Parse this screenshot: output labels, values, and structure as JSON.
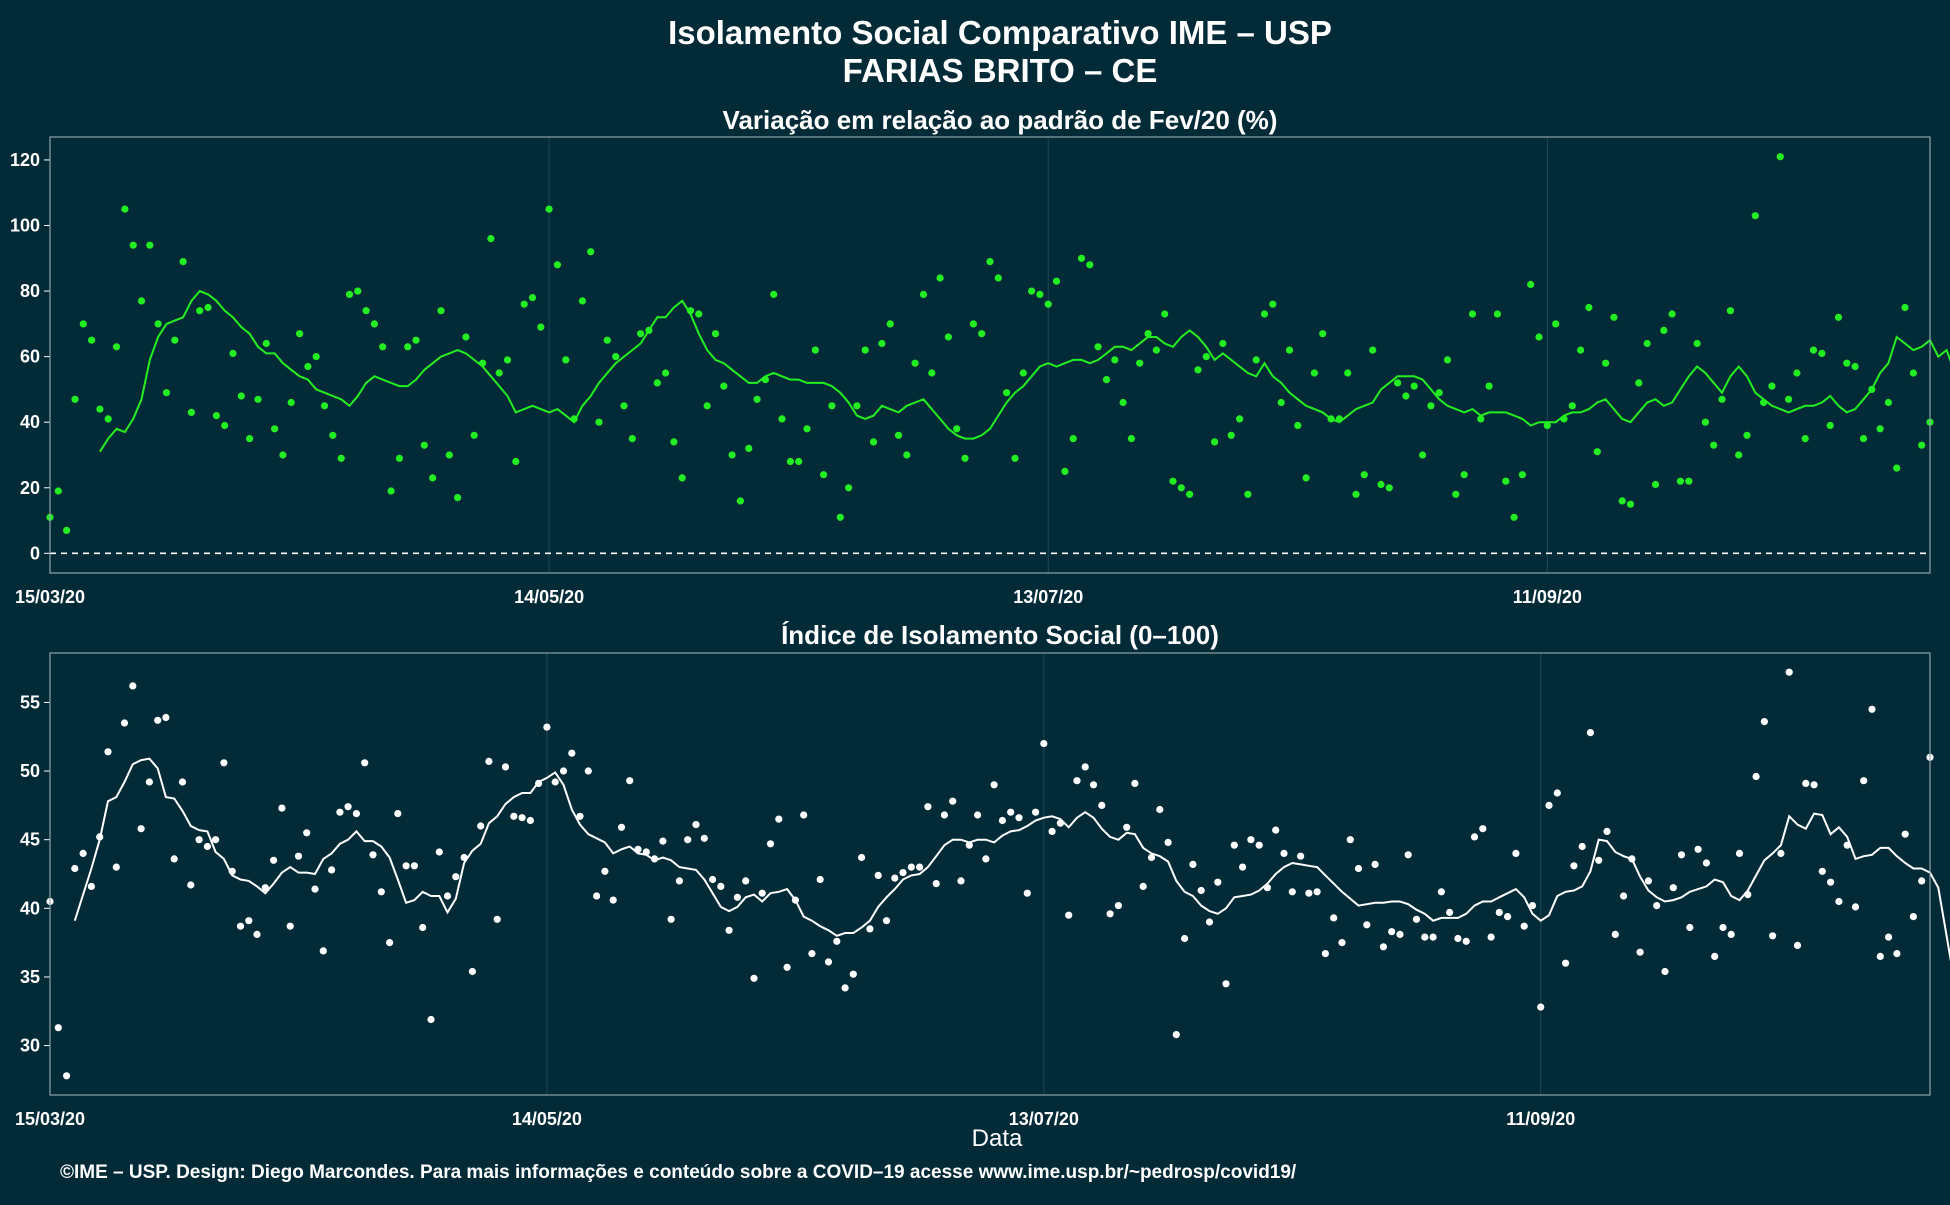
{
  "title_line1": "Isolamento Social Comparativo IME – USP",
  "title_line2": "FARIAS BRITO – CE",
  "xlabel": "Data",
  "footer": "©IME – USP. Design: Diego Marcondes. Para mais informações e conteúdo sobre a COVID–19 acesse www.ime.usp.br/~pedrosp/covid19/",
  "colors": {
    "background": "#022b37",
    "panel_border": "#8fa3ab",
    "grid": "#1e4957",
    "variation": "#22ee22",
    "index": "#ffffff"
  },
  "chart_data": [
    {
      "type": "scatter",
      "title": "Variação em relação ao padrão de Fev/20 (%)",
      "x_start": "2020-03-15",
      "x_ticks": [
        "15/03/20",
        "14/05/20",
        "13/07/20",
        "11/09/20"
      ],
      "yticks": [
        0,
        20,
        40,
        60,
        80,
        100,
        120
      ],
      "ylim": [
        -6,
        127
      ],
      "reference_line": 0,
      "series": [
        {
          "points": [
            11,
            19,
            7,
            47,
            70,
            65,
            44,
            41,
            63,
            105,
            94,
            77,
            94,
            70,
            49,
            65,
            89,
            43,
            74,
            75,
            42,
            39,
            61,
            48,
            35,
            47,
            64,
            38,
            30,
            46,
            67,
            57,
            60,
            45,
            36,
            29,
            79,
            80,
            74,
            70,
            63,
            19,
            29,
            63,
            65,
            33,
            23,
            74,
            30,
            17,
            66,
            36,
            58,
            96,
            55,
            59,
            28,
            76,
            78,
            69,
            105,
            88,
            59,
            41,
            77,
            92,
            40,
            65,
            60,
            45,
            35,
            67,
            68,
            52,
            55,
            34,
            23,
            74,
            73,
            45,
            67,
            51,
            30,
            16,
            32,
            47,
            53,
            79,
            41,
            28,
            28,
            38,
            62,
            24,
            45,
            11,
            20,
            45,
            62,
            34,
            64,
            70,
            36,
            30,
            58,
            79,
            55,
            84,
            66,
            38,
            29,
            70,
            67,
            89,
            84,
            49,
            29,
            55,
            80,
            79,
            76,
            83,
            25,
            35,
            90,
            88,
            63,
            53,
            59,
            46,
            35,
            58,
            67,
            62,
            73,
            22,
            20,
            18,
            56,
            60,
            34,
            64,
            36,
            41,
            18,
            59,
            73,
            76,
            46,
            62,
            39,
            23,
            55,
            67,
            41,
            41,
            55,
            18,
            24,
            62,
            21,
            20,
            52,
            48,
            51,
            30,
            45,
            49,
            59,
            18,
            24,
            73,
            41,
            51,
            73,
            22,
            11,
            24,
            82,
            66,
            39,
            70,
            41,
            45,
            62,
            75,
            31,
            58,
            72,
            16,
            15,
            52,
            64,
            21,
            68,
            73,
            22,
            22,
            64,
            40,
            33,
            47,
            74,
            30,
            36,
            103,
            46,
            51,
            121,
            47,
            55,
            35,
            62,
            61,
            39,
            72,
            58,
            57,
            35,
            50,
            38,
            46,
            26,
            75,
            55,
            33,
            40
          ],
          "moving_average": [
            null,
            null,
            null,
            null,
            null,
            null,
            31,
            35,
            38,
            37,
            41,
            47,
            59,
            66,
            70,
            71,
            72,
            77,
            80,
            79,
            77,
            74,
            72,
            69,
            67,
            63,
            61,
            61,
            58,
            56,
            54,
            53,
            50,
            49,
            48,
            47,
            45,
            48,
            52,
            54,
            53,
            52,
            51,
            51,
            53,
            56,
            58,
            60,
            61,
            62,
            61,
            59,
            57,
            54,
            51,
            48,
            43,
            44,
            45,
            44,
            43,
            44,
            42,
            40,
            45,
            48,
            52,
            55,
            58,
            60,
            62,
            64,
            68,
            72,
            72,
            75,
            77,
            73,
            67,
            62,
            59,
            58,
            56,
            54,
            52,
            52,
            54,
            55,
            54,
            53,
            53,
            52,
            52,
            52,
            51,
            49,
            46,
            42,
            41,
            42,
            45,
            44,
            43,
            45,
            46,
            47,
            44,
            41,
            38,
            36,
            35,
            35,
            36,
            38,
            42,
            46,
            49,
            51,
            54,
            57,
            58,
            57,
            58,
            59,
            59,
            58,
            59,
            61,
            63,
            63,
            62,
            64,
            66,
            66,
            64,
            63,
            66,
            68,
            66,
            63,
            59,
            61,
            59,
            57,
            55,
            54,
            58,
            54,
            52,
            49,
            47,
            45,
            44,
            43,
            41,
            40,
            42,
            44,
            45,
            46,
            50,
            52,
            54,
            54,
            54,
            53,
            50,
            47,
            45,
            44,
            43,
            44,
            42,
            43,
            43,
            43,
            42,
            41,
            39,
            40,
            40,
            40,
            42,
            43,
            43,
            44,
            46,
            47,
            44,
            41,
            40,
            43,
            46,
            47,
            45,
            46,
            50,
            54,
            57,
            55,
            52,
            49,
            54,
            57,
            54,
            49,
            47,
            45,
            44,
            43,
            44,
            45,
            45,
            46,
            48,
            45,
            43,
            44,
            47,
            50,
            55,
            58,
            66,
            64,
            62,
            63,
            65,
            60,
            62,
            55,
            57,
            56,
            58,
            56,
            53,
            50,
            49,
            47,
            45
          ]
        }
      ]
    },
    {
      "type": "scatter",
      "title": "Índice de Isolamento Social (0–100)",
      "x_start": "2020-03-15",
      "x_ticks": [
        "15/03/20",
        "14/05/20",
        "13/07/20",
        "11/09/20"
      ],
      "yticks": [
        30,
        35,
        40,
        45,
        50,
        55
      ],
      "ylim": [
        26.4,
        58.6
      ],
      "series": [
        {
          "points": [
            40.5,
            31.3,
            27.8,
            42.9,
            44.0,
            41.6,
            45.2,
            51.4,
            43.0,
            53.5,
            56.2,
            45.8,
            49.2,
            53.7,
            53.9,
            43.6,
            49.2,
            41.7,
            45.0,
            44.5,
            45.0,
            50.6,
            42.7,
            38.7,
            39.1,
            38.1,
            41.5,
            43.5,
            47.3,
            38.7,
            43.8,
            45.5,
            41.4,
            36.9,
            42.8,
            47.0,
            47.4,
            46.9,
            50.6,
            43.9,
            41.2,
            37.5,
            46.9,
            43.1,
            43.1,
            38.6,
            31.9,
            44.1,
            40.9,
            42.3,
            43.7,
            35.4,
            46.0,
            50.7,
            39.2,
            50.3,
            46.7,
            46.6,
            46.4,
            49.1,
            53.2,
            49.2,
            50.0,
            51.3,
            46.7,
            50.0,
            40.9,
            42.7,
            40.6,
            45.9,
            49.3,
            44.3,
            44.1,
            43.6,
            44.9,
            39.2,
            42.0,
            45.0,
            46.1,
            45.1,
            42.1,
            41.6,
            38.4,
            40.8,
            42.0,
            34.9,
            41.1,
            44.7,
            46.5,
            35.7,
            40.6,
            46.8,
            36.7,
            42.1,
            36.1,
            37.6,
            34.2,
            35.2,
            43.7,
            38.5,
            42.4,
            39.1,
            42.2,
            42.6,
            43.0,
            43.0,
            47.4,
            41.8,
            46.8,
            47.8,
            42.0,
            44.6,
            46.8,
            43.6,
            49.0,
            46.4,
            47.0,
            46.6,
            41.1,
            47.0,
            52.0,
            45.6,
            46.2,
            39.5,
            49.3,
            50.3,
            49.0,
            47.5,
            39.6,
            40.2,
            45.9,
            49.1,
            41.6,
            43.7,
            47.2,
            44.8,
            30.8,
            37.8,
            43.2,
            41.3,
            39.0,
            41.9,
            34.5,
            44.6,
            43.0,
            45.0,
            44.6,
            41.5,
            45.7,
            44.0,
            41.2,
            43.8,
            41.1,
            41.2,
            36.7,
            39.3,
            37.5,
            45.0,
            42.9,
            38.8,
            43.2,
            37.2,
            38.3,
            38.1,
            43.9,
            39.2,
            37.9,
            37.9,
            41.2,
            39.7,
            37.8,
            37.6,
            45.2,
            45.8,
            37.9,
            39.7,
            39.4,
            44.0,
            38.7,
            40.2,
            32.8,
            47.5,
            48.4,
            36.0,
            43.1,
            44.5,
            52.8,
            43.5,
            45.6,
            38.1,
            40.9,
            43.6,
            36.8,
            42.0,
            40.2,
            35.4,
            41.5,
            43.9,
            38.6,
            44.3,
            43.3,
            36.5,
            38.6,
            38.1,
            44.0,
            41.0,
            49.6,
            53.6,
            38.0,
            44.0,
            57.2,
            37.3,
            49.1,
            49.0,
            42.7,
            41.9,
            40.5,
            44.6,
            40.1,
            49.3,
            54.5,
            36.5,
            37.9,
            36.7,
            45.4,
            39.4,
            42.0,
            51.0
          ],
          "moving_average": [
            null,
            null,
            null,
            39.1,
            41.0,
            42.9,
            45.0,
            47.8,
            48.1,
            49.2,
            50.5,
            50.8,
            50.9,
            50.2,
            48.1,
            48.0,
            47.1,
            46.0,
            45.7,
            45.6,
            44.1,
            43.6,
            42.4,
            42.1,
            42.0,
            41.6,
            41.1,
            41.8,
            42.6,
            43.0,
            42.6,
            42.6,
            42.5,
            43.6,
            44.0,
            44.7,
            45.0,
            45.6,
            44.9,
            44.9,
            44.5,
            43.7,
            42.1,
            40.4,
            40.6,
            41.2,
            40.9,
            40.9,
            39.7,
            40.7,
            43.3,
            44.2,
            44.7,
            46.2,
            46.7,
            47.6,
            48.1,
            48.4,
            48.4,
            49.2,
            49.5,
            49.9,
            49.0,
            47.2,
            46.1,
            45.4,
            45.1,
            44.8,
            44.0,
            44.3,
            44.5,
            44.0,
            43.9,
            43.5,
            43.7,
            43.5,
            43.0,
            42.9,
            42.8,
            42.1,
            41.1,
            40.1,
            39.8,
            40.1,
            40.8,
            41.0,
            40.5,
            41.1,
            41.2,
            41.4,
            40.6,
            39.4,
            39.1,
            38.7,
            38.4,
            38.0,
            38.2,
            38.2,
            38.6,
            39.1,
            40.1,
            40.8,
            41.4,
            42.1,
            42.4,
            42.5,
            43.0,
            43.8,
            44.6,
            45.0,
            45.0,
            44.8,
            45.0,
            45.0,
            44.8,
            45.3,
            45.6,
            45.7,
            46.0,
            46.4,
            46.6,
            46.7,
            46.5,
            45.9,
            46.6,
            47.0,
            46.6,
            45.8,
            45.2,
            45.0,
            45.5,
            45.4,
            44.4,
            44.0,
            43.8,
            43.4,
            42.0,
            41.2,
            40.9,
            40.2,
            39.8,
            39.6,
            40.0,
            40.8,
            40.9,
            41.0,
            41.3,
            41.8,
            42.5,
            43.0,
            43.3,
            43.2,
            43.1,
            43.0,
            42.4,
            41.8,
            41.2,
            40.7,
            40.2,
            40.3,
            40.4,
            40.4,
            40.5,
            40.5,
            40.3,
            39.9,
            39.6,
            39.1,
            39.3,
            39.3,
            39.3,
            39.6,
            40.2,
            40.5,
            40.5,
            40.8,
            41.1,
            41.4,
            40.8,
            39.6,
            39.1,
            39.5,
            40.9,
            41.2,
            41.3,
            41.6,
            42.7,
            45.0,
            44.9,
            44.1,
            43.8,
            43.6,
            42.3,
            41.3,
            40.8,
            40.5,
            40.6,
            40.8,
            41.2,
            41.4,
            41.6,
            42.1,
            41.9,
            40.9,
            40.6,
            41.3,
            42.4,
            43.5,
            44.0,
            44.6,
            46.7,
            46.1,
            45.8,
            46.9,
            46.8,
            45.4,
            45.9,
            45.2,
            43.6,
            43.8,
            43.9,
            44.4,
            44.4,
            43.8,
            43.3,
            42.9,
            42.9,
            42.6,
            41.5,
            38.0,
            34.5,
            30.6
          ]
        }
      ]
    }
  ]
}
